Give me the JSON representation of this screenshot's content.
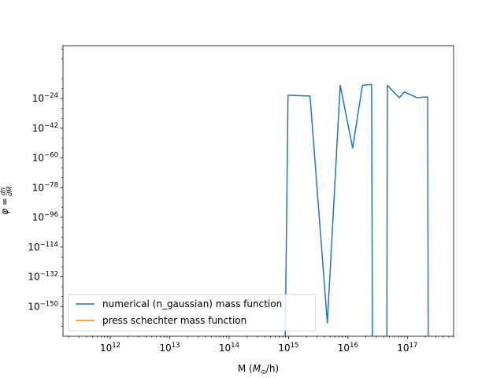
{
  "chart_data": {
    "type": "line",
    "title": "",
    "xlabel": "M ($M_\\odot$/h)",
    "xlabel_parts": {
      "prefix": "M (",
      "symbol": "M",
      "subscript": "⊙",
      "suffix": "/h)"
    },
    "ylabel": "$\\phi = \\frac{dn}{dM}$",
    "ylabel_parts": {
      "phi": "φ = ",
      "numerator": "dn",
      "denominator": "dM"
    },
    "xscale": "log",
    "yscale": "log",
    "xlim": [
      160000000000.0,
      6e+17
    ],
    "ylim_log10": [
      -168,
      8
    ],
    "grid": false,
    "legend_location": "lower left",
    "x_ticks": [
      {
        "base": "10",
        "exp": "12",
        "value": 1000000000000.0
      },
      {
        "base": "10",
        "exp": "13",
        "value": 10000000000000.0
      },
      {
        "base": "10",
        "exp": "14",
        "value": 100000000000000.0
      },
      {
        "base": "10",
        "exp": "15",
        "value": 1000000000000000.0
      },
      {
        "base": "10",
        "exp": "16",
        "value": 1e+16
      },
      {
        "base": "10",
        "exp": "17",
        "value": 1e+17
      }
    ],
    "y_ticks": [
      {
        "base": "10",
        "exp": "−24",
        "log10": -24
      },
      {
        "base": "10",
        "exp": "−42",
        "log10": -42
      },
      {
        "base": "10",
        "exp": "−60",
        "log10": -60
      },
      {
        "base": "10",
        "exp": "−78",
        "log10": -78
      },
      {
        "base": "10",
        "exp": "−96",
        "log10": -96
      },
      {
        "base": "10",
        "exp": "−114",
        "log10": -114
      },
      {
        "base": "10",
        "exp": "−132",
        "log10": -132
      },
      {
        "base": "10",
        "exp": "−150",
        "log10": -150
      }
    ],
    "series": [
      {
        "name": "numerical (n_gaussian) mass function",
        "color": "#1f77b4",
        "segments": [
          [
            {
              "x": 860000000000000.0,
              "log10_y": -200
            },
            {
              "x": 980000000000000.0,
              "log10_y": -22
            },
            {
              "x": 2300000000000000.0,
              "log10_y": -22.5
            },
            {
              "x": 4500000000000000.0,
              "log10_y": -160
            },
            {
              "x": 7400000000000000.0,
              "log10_y": -16
            },
            {
              "x": 1.2e+16,
              "log10_y": -54
            },
            {
              "x": 1.75e+16,
              "log10_y": -16
            },
            {
              "x": 2.5e+16,
              "log10_y": -15.5
            },
            {
              "x": 2.6e+16,
              "log10_y": -200
            }
          ],
          [
            {
              "x": 4.5e+16,
              "log10_y": -200
            },
            {
              "x": 4.6e+16,
              "log10_y": -16
            },
            {
              "x": 7.3e+16,
              "log10_y": -23.5
            },
            {
              "x": 8.9e+16,
              "log10_y": -20
            },
            {
              "x": 1.45e+17,
              "log10_y": -23.5
            },
            {
              "x": 2.2e+17,
              "log10_y": -23
            },
            {
              "x": 2.25e+17,
              "log10_y": -200
            }
          ]
        ]
      },
      {
        "name": "press schechter mass function",
        "color": "#ff7f0e",
        "segments": []
      }
    ]
  }
}
